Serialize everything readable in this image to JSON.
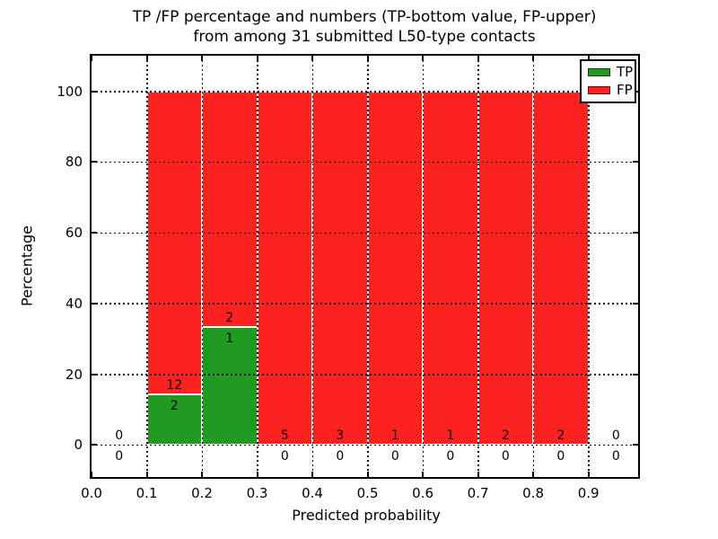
{
  "figure": {
    "background": "#ffffff"
  },
  "chart_data": {
    "type": "bar",
    "subtype": "stacked-percentage-histogram",
    "title_lines": [
      "TP /FP percentage and numbers (TP-bottom value, FP-upper)",
      "from among 31 submitted L50-type contacts"
    ],
    "xlabel": "Predicted probability",
    "ylabel": "Percentage",
    "xlim": [
      0.0,
      0.99
    ],
    "ylim": [
      -9.1,
      110.1
    ],
    "grid": "dotted",
    "xtick_labels": [
      "0.0",
      "0.1",
      "0.2",
      "0.3",
      "0.4",
      "0.5",
      "0.6",
      "0.7",
      "0.8",
      "0.9"
    ],
    "xtick_values": [
      0.0,
      0.1,
      0.2,
      0.3,
      0.4,
      0.5,
      0.6,
      0.7,
      0.8,
      0.9
    ],
    "ytick_labels": [
      "0",
      "20",
      "40",
      "60",
      "80",
      "100"
    ],
    "ytick_values": [
      0,
      20,
      40,
      60,
      80,
      100
    ],
    "bins": [
      {
        "x0": 0.0,
        "x1": 0.1,
        "tp": 0,
        "fp": 0
      },
      {
        "x0": 0.1,
        "x1": 0.2,
        "tp": 2,
        "fp": 12
      },
      {
        "x0": 0.2,
        "x1": 0.3,
        "tp": 1,
        "fp": 2
      },
      {
        "x0": 0.3,
        "x1": 0.4,
        "tp": 0,
        "fp": 5
      },
      {
        "x0": 0.4,
        "x1": 0.5,
        "tp": 0,
        "fp": 3
      },
      {
        "x0": 0.5,
        "x1": 0.6,
        "tp": 0,
        "fp": 1
      },
      {
        "x0": 0.6,
        "x1": 0.7,
        "tp": 0,
        "fp": 1
      },
      {
        "x0": 0.7,
        "x1": 0.8,
        "tp": 0,
        "fp": 2
      },
      {
        "x0": 0.8,
        "x1": 0.9,
        "tp": 0,
        "fp": 2
      },
      {
        "x0": 0.9,
        "x1": 1.0,
        "tp": 0,
        "fp": 0
      }
    ],
    "colors": {
      "tp": "#219a21",
      "fp": "#fc221f",
      "grid": "#000000",
      "text": "#000000",
      "bar_edge": "#ffffff"
    },
    "legend": {
      "position": "upper right",
      "entries": [
        {
          "label": "TP",
          "color": "#219a21"
        },
        {
          "label": "FP",
          "color": "#fc221f"
        }
      ]
    }
  }
}
